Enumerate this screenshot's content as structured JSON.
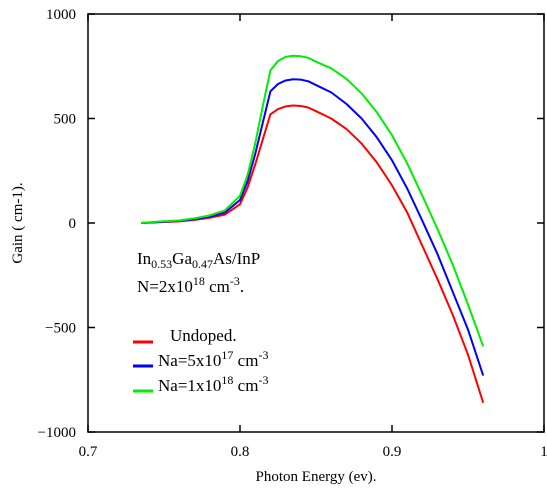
{
  "chart_data": {
    "type": "line",
    "xlabel": "Photon Energy (ev).",
    "ylabel": "Gain ( cm-1).",
    "xlim": [
      0.7,
      1.0
    ],
    "ylim": [
      -1000,
      1000
    ],
    "x_ticks": [
      0.7,
      0.8,
      0.9,
      1.0
    ],
    "x_tick_labels": [
      "0.7",
      "0.8",
      "0.9",
      "1"
    ],
    "y_ticks": [
      -1000,
      -500,
      0,
      500,
      1000
    ],
    "y_tick_labels": [
      "−1000",
      "−500",
      "0",
      "500",
      "1000"
    ],
    "grid": false,
    "legend_position": "bottom-left",
    "annotation": {
      "line1": {
        "base": "In",
        "sub1": "0.53",
        "mid": "Ga",
        "sub2": "0.47",
        "tail": "As/InP"
      },
      "line2": {
        "base": "N=2x10",
        "sup": "18",
        "mid": " cm",
        "sup2": "-3",
        "tail": "."
      }
    },
    "series": [
      {
        "name": "Undoped.",
        "color": "#ff0000",
        "legend": {
          "text": "Undoped.",
          "sup": "",
          "tail": ""
        },
        "x": [
          0.735,
          0.745,
          0.76,
          0.77,
          0.78,
          0.79,
          0.8,
          0.805,
          0.81,
          0.815,
          0.82,
          0.825,
          0.83,
          0.835,
          0.84,
          0.845,
          0.85,
          0.86,
          0.87,
          0.88,
          0.89,
          0.9,
          0.91,
          0.92,
          0.93,
          0.94,
          0.95,
          0.96
        ],
        "y": [
          0,
          3,
          8,
          15,
          25,
          40,
          90,
          170,
          280,
          400,
          520,
          545,
          558,
          562,
          560,
          552,
          535,
          500,
          450,
          380,
          290,
          180,
          50,
          -110,
          -270,
          -440,
          -630,
          -860
        ]
      },
      {
        "name": "Na=5x10 17 cm -3",
        "color": "#0000ff",
        "legend": {
          "text": "Na=5x10",
          "sup": "17",
          "tail": " cm",
          "sup2": "-3"
        },
        "x": [
          0.735,
          0.745,
          0.76,
          0.77,
          0.78,
          0.79,
          0.8,
          0.805,
          0.81,
          0.815,
          0.82,
          0.825,
          0.83,
          0.835,
          0.84,
          0.845,
          0.85,
          0.86,
          0.87,
          0.88,
          0.89,
          0.9,
          0.91,
          0.92,
          0.93,
          0.94,
          0.95,
          0.96
        ],
        "y": [
          0,
          4,
          10,
          18,
          30,
          50,
          110,
          200,
          330,
          480,
          630,
          665,
          682,
          688,
          686,
          678,
          660,
          625,
          570,
          500,
          410,
          300,
          165,
          10,
          -150,
          -330,
          -510,
          -730
        ]
      },
      {
        "name": "Na=1x10 18 cm -3",
        "color": "#00ee00",
        "legend": {
          "text": "Na=1x10",
          "sup": "18",
          "tail": " cm",
          "sup2": "-3"
        },
        "x": [
          0.735,
          0.745,
          0.76,
          0.77,
          0.78,
          0.79,
          0.8,
          0.805,
          0.81,
          0.815,
          0.82,
          0.825,
          0.83,
          0.835,
          0.84,
          0.845,
          0.85,
          0.86,
          0.87,
          0.88,
          0.89,
          0.9,
          0.91,
          0.92,
          0.93,
          0.94,
          0.95,
          0.96
        ],
        "y": [
          0,
          6,
          12,
          22,
          36,
          60,
          130,
          230,
          380,
          560,
          730,
          775,
          795,
          800,
          798,
          790,
          772,
          740,
          690,
          620,
          530,
          420,
          285,
          130,
          -30,
          -200,
          -390,
          -590
        ]
      }
    ]
  }
}
